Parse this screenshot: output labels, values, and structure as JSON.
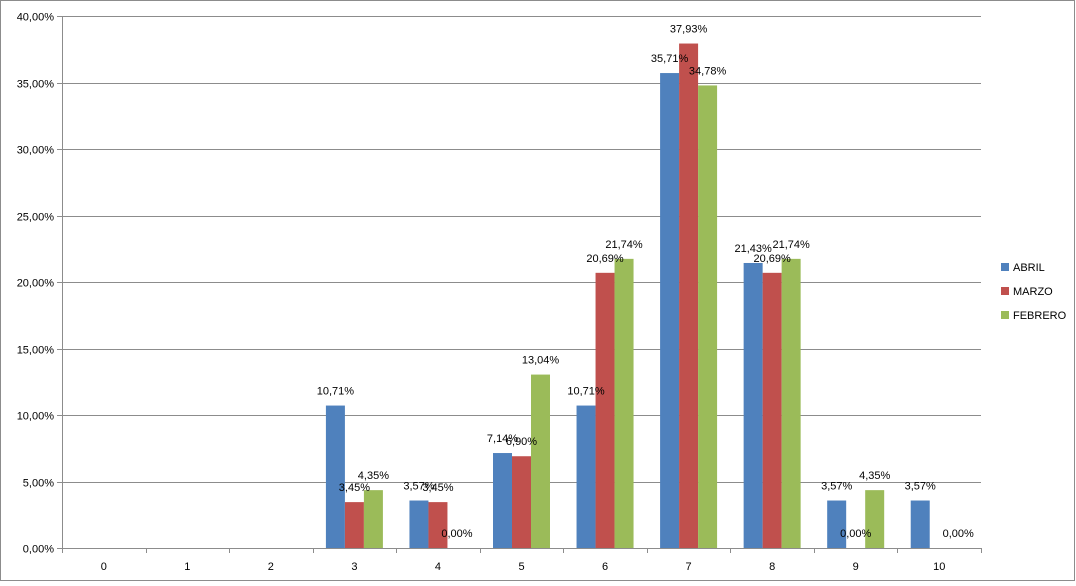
{
  "chart_data": {
    "type": "bar",
    "categories": [
      "0",
      "1",
      "2",
      "3",
      "4",
      "5",
      "6",
      "7",
      "8",
      "9",
      "10"
    ],
    "series": [
      {
        "name": "ABRIL",
        "color": "#4F81BD",
        "values": [
          null,
          null,
          null,
          10.71,
          3.57,
          7.14,
          10.71,
          35.71,
          21.43,
          3.57,
          3.57
        ],
        "labels": [
          null,
          null,
          null,
          "10,71%",
          "3,57%",
          "7,14%",
          "10,71%",
          "35,71%",
          "21,43%",
          "3,57%",
          "3,57%"
        ]
      },
      {
        "name": "MARZO",
        "color": "#C0504D",
        "values": [
          null,
          null,
          null,
          3.45,
          3.45,
          6.9,
          20.69,
          37.93,
          20.69,
          0.0,
          null
        ],
        "labels": [
          null,
          null,
          null,
          "3,45%",
          "3,45%",
          "6,90%",
          "20,69%",
          "37,93%",
          "20,69%",
          "0,00%",
          null
        ]
      },
      {
        "name": "FEBRERO",
        "color": "#9BBB59",
        "values": [
          null,
          null,
          null,
          4.35,
          0.0,
          13.04,
          21.74,
          34.78,
          21.74,
          4.35,
          0.0
        ],
        "labels": [
          null,
          null,
          null,
          "4,35%",
          "0,00%",
          "13,04%",
          "21,74%",
          "34,78%",
          "21,74%",
          "4,35%",
          "0,00%"
        ]
      }
    ],
    "y_ticks": [
      "0,00%",
      "5,00%",
      "10,00%",
      "15,00%",
      "20,00%",
      "25,00%",
      "30,00%",
      "35,00%",
      "40,00%"
    ],
    "ylim": [
      0,
      40
    ],
    "grid": true,
    "legend": "right"
  }
}
